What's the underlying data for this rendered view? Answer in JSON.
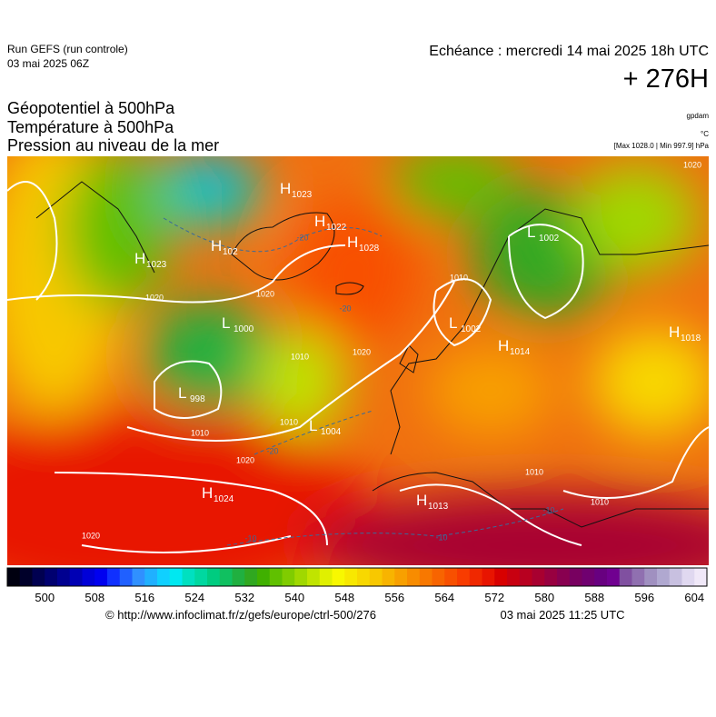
{
  "header": {
    "run": "Run GEFS (run controle)",
    "run_date": "03 mai 2025 06Z",
    "valid": "Echéance : mercredi 14 mai 2025 18h UTC",
    "lead": "+ 276H"
  },
  "titles": [
    "Géopotentiel à 500hPa",
    "Température à 500hPa",
    "Pression au niveau de la mer"
  ],
  "units": {
    "geopotential": "gpdam",
    "temperature": "°C",
    "pressure": "[Max 1028.0 | Min 997.9] hPa"
  },
  "centers": [
    {
      "type": "H",
      "value": "1023"
    },
    {
      "type": "H",
      "value": "102"
    },
    {
      "type": "H",
      "value": "1023"
    },
    {
      "type": "H",
      "value": "1022"
    },
    {
      "type": "H",
      "value": "1028"
    },
    {
      "type": "L",
      "value": "1000"
    },
    {
      "type": "L",
      "value": "998"
    },
    {
      "type": "L",
      "value": "1004"
    },
    {
      "type": "H",
      "value": "1024"
    },
    {
      "type": "H",
      "value": "1013"
    },
    {
      "type": "L",
      "value": "1002"
    },
    {
      "type": "L",
      "value": "1002"
    },
    {
      "type": "H",
      "value": "1014"
    },
    {
      "type": "H",
      "value": "1018"
    }
  ],
  "isobar_labels": [
    "1020",
    "1020",
    "1010",
    "1020",
    "1010",
    "1010",
    "1020",
    "1010",
    "1020",
    "1010",
    "1020",
    "1010"
  ],
  "temperature_labels": [
    "-20",
    "-20",
    "-20",
    "-10",
    "-10",
    "-10"
  ],
  "colorbar": {
    "range": [
      494,
      606
    ],
    "ticks": [
      500,
      508,
      516,
      524,
      532,
      540,
      548,
      556,
      564,
      572,
      580,
      588,
      596,
      604
    ],
    "colors": [
      "#000010",
      "#00002a",
      "#000050",
      "#000070",
      "#000090",
      "#0000b4",
      "#0000d8",
      "#0000f0",
      "#1030ff",
      "#2060ff",
      "#3090ff",
      "#20b0ff",
      "#10d0ff",
      "#00e8f0",
      "#00e0c0",
      "#00d8a0",
      "#00cc80",
      "#10c060",
      "#20b040",
      "#30a820",
      "#40b000",
      "#60c000",
      "#80cc00",
      "#a0d800",
      "#c0e400",
      "#e0f000",
      "#f8f800",
      "#f8e800",
      "#f8d800",
      "#f8c800",
      "#f8b400",
      "#f8a000",
      "#f88c00",
      "#f87800",
      "#f86400",
      "#f85000",
      "#f83c00",
      "#f02800",
      "#e81400",
      "#d80000",
      "#c80010",
      "#b80020",
      "#a80030",
      "#980040",
      "#880050",
      "#780060",
      "#700070",
      "#680080",
      "#700090",
      "#8050a0",
      "#9070b0",
      "#a090c0",
      "#b0a8d0",
      "#c8c0e0",
      "#e0d8f0",
      "#f0e8f8"
    ]
  },
  "footer": {
    "source": "© http://www.infoclimat.fr/z/gefs/europe/ctrl-500/276",
    "created": "03 mai 2025 11:25 UTC"
  }
}
